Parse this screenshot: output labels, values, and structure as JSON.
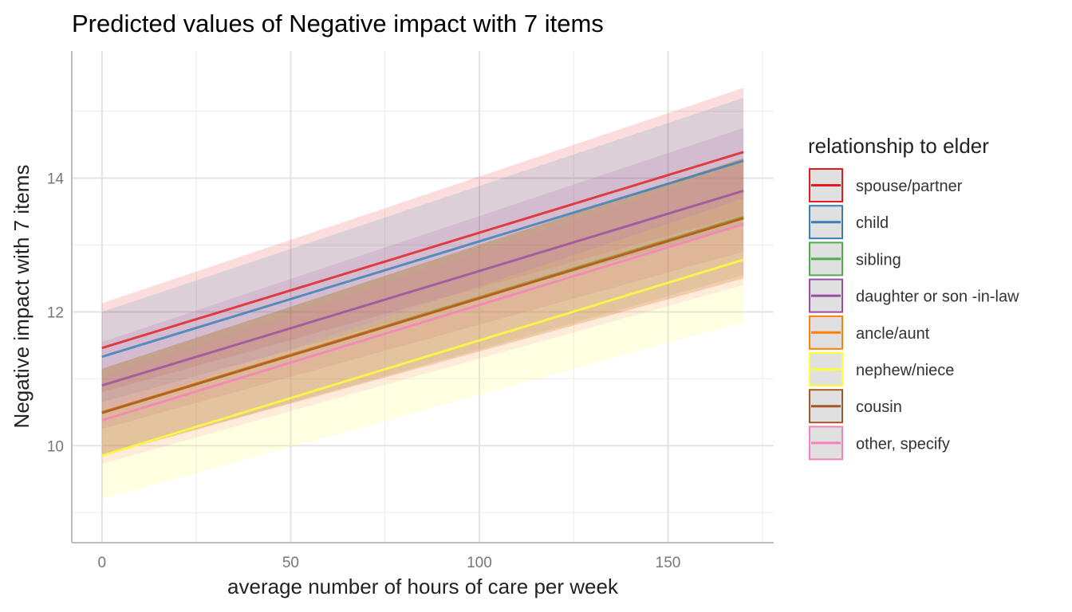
{
  "chart_data": {
    "type": "line",
    "title": "Predicted values of Negative impact with 7 items",
    "xlabel": "average number of hours of care per week",
    "ylabel": "Negative impact with 7 items",
    "xlim": [
      -8,
      178
    ],
    "ylim": [
      8.55,
      15.9
    ],
    "x_ticks": [
      0,
      50,
      100,
      150
    ],
    "y_ticks": [
      10,
      12,
      14
    ],
    "grid": true,
    "legend": {
      "title": "relationship to elder",
      "position": "right"
    },
    "x": [
      0,
      170
    ],
    "series": [
      {
        "name": "spouse/partner",
        "color": "#E41A1C",
        "values": [
          11.46,
          14.39
        ],
        "lower": [
          10.8,
          13.45
        ],
        "upper": [
          12.13,
          15.35
        ]
      },
      {
        "name": "child",
        "color": "#377EB8",
        "values": [
          11.33,
          14.26
        ],
        "lower": [
          10.65,
          13.3
        ],
        "upper": [
          12.0,
          15.2
        ]
      },
      {
        "name": "sibling",
        "color": "#4DAF4A",
        "values": [
          10.5,
          13.42
        ],
        "lower": [
          9.85,
          12.55
        ],
        "upper": [
          11.15,
          14.3
        ]
      },
      {
        "name": "daughter or son -in-law",
        "color": "#984EA3",
        "values": [
          10.9,
          13.81
        ],
        "lower": [
          10.25,
          12.9
        ],
        "upper": [
          11.55,
          14.75
        ]
      },
      {
        "name": "ancle/aunt",
        "color": "#FF7F00",
        "values": [
          10.5,
          13.41
        ],
        "lower": [
          9.85,
          12.5
        ],
        "upper": [
          11.15,
          14.3
        ]
      },
      {
        "name": "nephew/niece",
        "color": "#FFFF33",
        "values": [
          9.85,
          12.78
        ],
        "lower": [
          9.2,
          11.85
        ],
        "upper": [
          10.5,
          13.7
        ]
      },
      {
        "name": "cousin",
        "color": "#A65628",
        "values": [
          10.49,
          13.4
        ],
        "lower": [
          9.85,
          12.5
        ],
        "upper": [
          11.15,
          14.3
        ]
      },
      {
        "name": "other, specify",
        "color": "#F781BF",
        "values": [
          10.38,
          13.31
        ],
        "lower": [
          9.73,
          12.4
        ],
        "upper": [
          11.03,
          14.2
        ]
      }
    ]
  }
}
